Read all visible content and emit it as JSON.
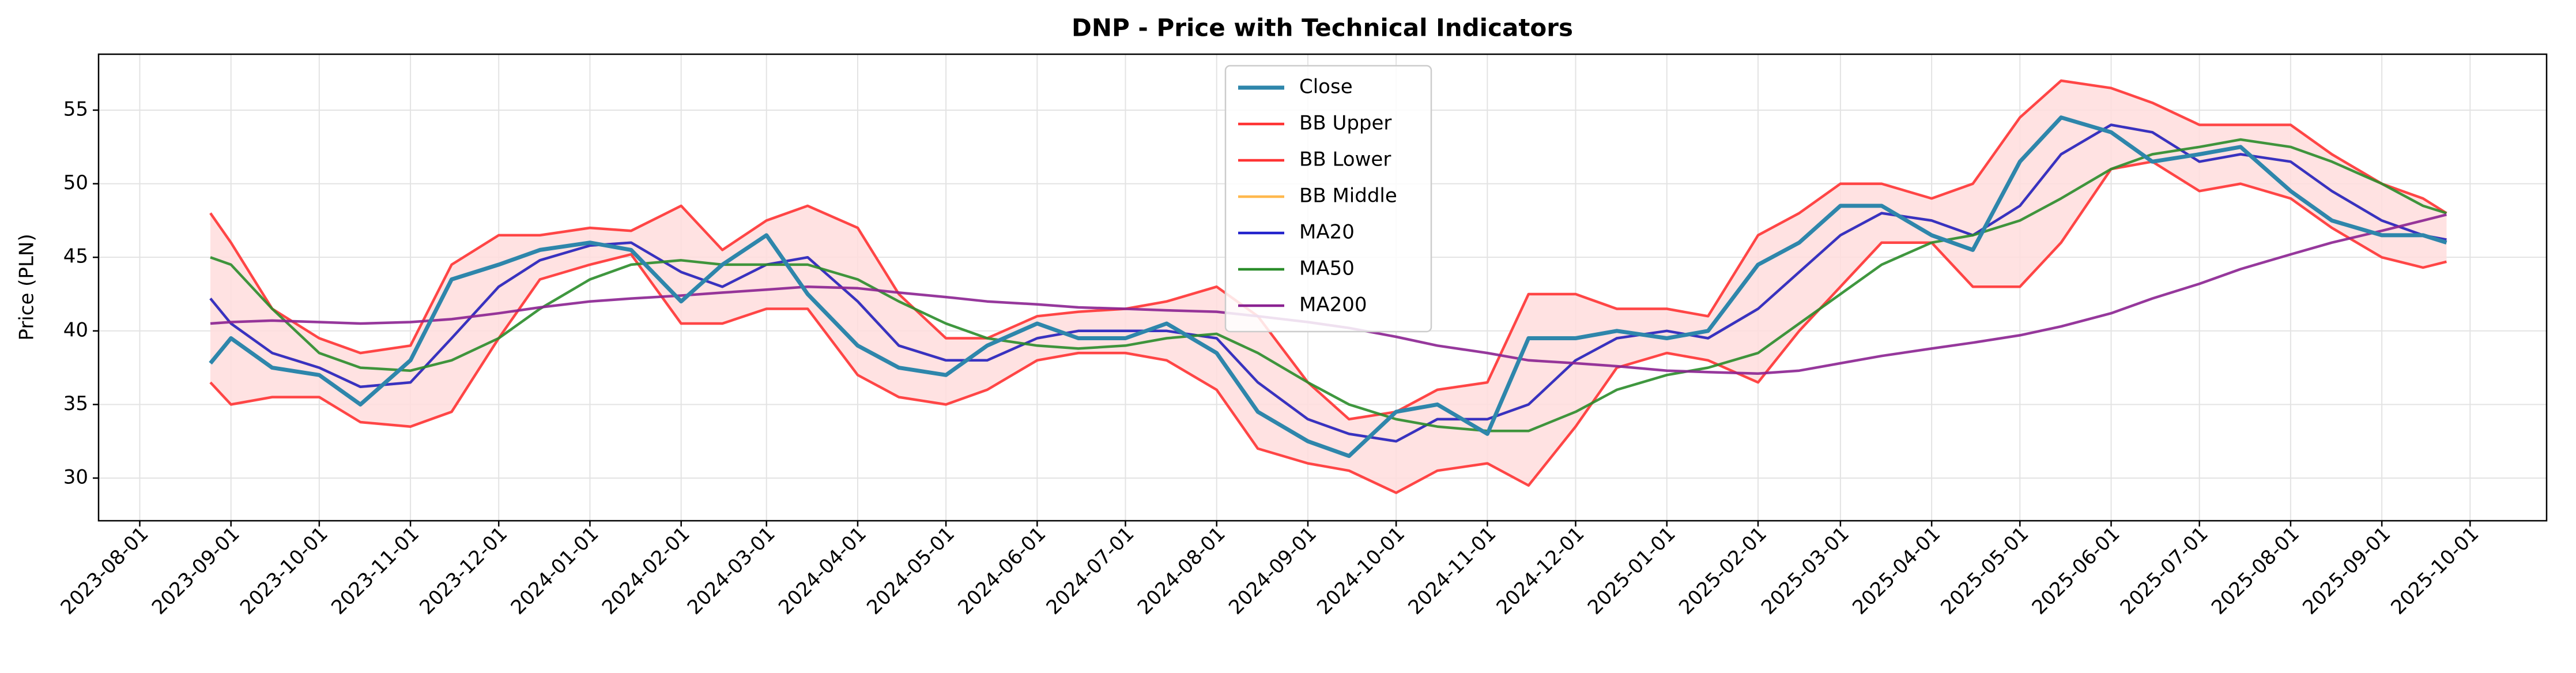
{
  "chart_data": {
    "type": "line",
    "title": "DNP - Price with Technical Indicators",
    "y_label": "Price (PLN)",
    "x": [
      "2023-08-25",
      "2023-09-01",
      "2023-09-15",
      "2023-10-01",
      "2023-10-15",
      "2023-11-01",
      "2023-11-15",
      "2023-12-01",
      "2023-12-15",
      "2024-01-01",
      "2024-01-15",
      "2024-02-01",
      "2024-02-15",
      "2024-03-01",
      "2024-03-15",
      "2024-04-01",
      "2024-04-15",
      "2024-05-01",
      "2024-05-15",
      "2024-06-01",
      "2024-06-15",
      "2024-07-01",
      "2024-07-15",
      "2024-08-01",
      "2024-08-15",
      "2024-09-01",
      "2024-09-15",
      "2024-10-01",
      "2024-10-15",
      "2024-11-01",
      "2024-11-15",
      "2024-12-01",
      "2024-12-15",
      "2025-01-01",
      "2025-01-15",
      "2025-02-01",
      "2025-02-15",
      "2025-03-01",
      "2025-03-15",
      "2025-04-01",
      "2025-04-15",
      "2025-05-01",
      "2025-05-15",
      "2025-06-01",
      "2025-06-15",
      "2025-07-01",
      "2025-07-15",
      "2025-08-01",
      "2025-08-15",
      "2025-09-01",
      "2025-09-15",
      "2025-09-23"
    ],
    "series": [
      {
        "name": "Close",
        "color": "#2e86ab",
        "values": [
          37.8,
          39.5,
          37.5,
          37.0,
          35.0,
          38.0,
          43.5,
          44.5,
          45.5,
          46.0,
          45.5,
          42.0,
          44.5,
          46.5,
          42.5,
          39.0,
          37.5,
          37.0,
          39.0,
          40.5,
          39.5,
          39.5,
          40.5,
          38.5,
          34.5,
          32.5,
          31.5,
          34.5,
          35.0,
          33.0,
          39.5,
          39.5,
          40.0,
          39.5,
          40.0,
          44.5,
          46.0,
          48.5,
          48.5,
          46.5,
          45.5,
          51.5,
          54.5,
          53.5,
          51.5,
          52.0,
          52.5,
          49.5,
          47.5,
          46.5,
          46.5,
          46.0
        ]
      },
      {
        "name": "BB Upper",
        "color": "#ff3333",
        "values": [
          48.0,
          46.0,
          41.5,
          39.5,
          38.5,
          39.0,
          44.5,
          46.5,
          46.5,
          47.0,
          46.8,
          48.5,
          45.5,
          47.5,
          48.5,
          47.0,
          42.5,
          39.5,
          39.5,
          41.0,
          41.3,
          41.5,
          42.0,
          43.0,
          41.0,
          36.5,
          34.0,
          34.5,
          36.0,
          36.5,
          42.5,
          42.5,
          41.5,
          41.5,
          41.0,
          46.5,
          48.0,
          50.0,
          50.0,
          49.0,
          50.0,
          54.5,
          57.0,
          56.5,
          55.5,
          54.0,
          54.0,
          54.0,
          52.0,
          50.0,
          49.0,
          48.0
        ]
      },
      {
        "name": "BB Lower",
        "color": "#ff3333",
        "values": [
          36.5,
          35.0,
          35.5,
          35.5,
          33.8,
          33.5,
          34.5,
          39.5,
          43.5,
          44.5,
          45.2,
          40.5,
          40.5,
          41.5,
          41.5,
          37.0,
          35.5,
          35.0,
          36.0,
          38.0,
          38.5,
          38.5,
          38.0,
          36.0,
          32.0,
          31.0,
          30.5,
          29.0,
          30.5,
          31.0,
          29.5,
          33.5,
          37.5,
          38.5,
          38.0,
          36.5,
          40.0,
          43.0,
          46.0,
          46.0,
          43.0,
          43.0,
          46.0,
          51.0,
          51.5,
          49.5,
          50.0,
          49.0,
          47.0,
          45.0,
          44.3,
          44.7
        ]
      },
      {
        "name": "BB Middle",
        "color": "#ffb84d",
        "values": [
          42.2,
          40.5,
          38.5,
          37.5,
          36.2,
          36.5,
          39.5,
          43.0,
          44.8,
          45.8,
          46.0,
          44.0,
          43.0,
          44.5,
          45.0,
          42.0,
          39.0,
          38.0,
          38.0,
          39.5,
          40.0,
          40.0,
          40.0,
          39.5,
          36.5,
          34.0,
          33.0,
          32.5,
          34.0,
          34.0,
          35.0,
          38.0,
          39.5,
          40.0,
          39.5,
          41.5,
          44.0,
          46.5,
          48.0,
          47.5,
          46.5,
          48.5,
          52.0,
          54.0,
          53.5,
          51.5,
          52.0,
          51.5,
          49.5,
          47.5,
          46.5,
          46.2
        ]
      },
      {
        "name": "MA20",
        "color": "#2222cc",
        "values": [
          42.2,
          40.5,
          38.5,
          37.5,
          36.2,
          36.5,
          39.5,
          43.0,
          44.8,
          45.8,
          46.0,
          44.0,
          43.0,
          44.5,
          45.0,
          42.0,
          39.0,
          38.0,
          38.0,
          39.5,
          40.0,
          40.0,
          40.0,
          39.5,
          36.5,
          34.0,
          33.0,
          32.5,
          34.0,
          34.0,
          35.0,
          38.0,
          39.5,
          40.0,
          39.5,
          41.5,
          44.0,
          46.5,
          48.0,
          47.5,
          46.5,
          48.5,
          52.0,
          54.0,
          53.5,
          51.5,
          52.0,
          51.5,
          49.5,
          47.5,
          46.5,
          46.2
        ]
      },
      {
        "name": "MA50",
        "color": "#2a8c2a",
        "values": [
          45.0,
          44.5,
          41.5,
          38.5,
          37.5,
          37.3,
          38.0,
          39.5,
          41.5,
          43.5,
          44.5,
          44.8,
          44.5,
          44.5,
          44.5,
          43.5,
          42.0,
          40.5,
          39.5,
          39.0,
          38.8,
          39.0,
          39.5,
          39.8,
          38.5,
          36.5,
          35.0,
          34.0,
          33.5,
          33.2,
          33.2,
          34.5,
          36.0,
          37.0,
          37.5,
          38.5,
          40.5,
          42.5,
          44.5,
          46.0,
          46.5,
          47.5,
          49.0,
          51.0,
          52.0,
          52.5,
          53.0,
          52.5,
          51.5,
          50.0,
          48.5,
          48.0
        ]
      },
      {
        "name": "MA200",
        "color": "#8b2291",
        "values": [
          40.5,
          40.6,
          40.7,
          40.6,
          40.5,
          40.6,
          40.8,
          41.2,
          41.6,
          42.0,
          42.2,
          42.4,
          42.6,
          42.8,
          43.0,
          42.9,
          42.6,
          42.3,
          42.0,
          41.8,
          41.6,
          41.5,
          41.4,
          41.3,
          41.0,
          40.6,
          40.2,
          39.6,
          39.0,
          38.5,
          38.0,
          37.8,
          37.6,
          37.3,
          37.2,
          37.1,
          37.3,
          37.8,
          38.3,
          38.8,
          39.2,
          39.7,
          40.3,
          41.2,
          42.2,
          43.2,
          44.2,
          45.2,
          46.0,
          46.8,
          47.5,
          47.9
        ]
      }
    ],
    "band_fill": "#ffdddd",
    "xlim": [
      "2023-07-18",
      "2025-10-27"
    ],
    "xticks": [
      "2023-08-01",
      "2023-09-01",
      "2023-10-01",
      "2023-11-01",
      "2023-12-01",
      "2024-01-01",
      "2024-02-01",
      "2024-03-01",
      "2024-04-01",
      "2024-05-01",
      "2024-06-01",
      "2024-07-01",
      "2024-08-01",
      "2024-09-01",
      "2024-10-01",
      "2024-11-01",
      "2024-12-01",
      "2025-01-01",
      "2025-02-01",
      "2025-03-01",
      "2025-04-01",
      "2025-05-01",
      "2025-06-01",
      "2025-07-01",
      "2025-08-01",
      "2025-09-01",
      "2025-10-01"
    ],
    "ylim": [
      27.1,
      58.8
    ],
    "yticks": [
      30,
      35,
      40,
      45,
      50,
      55
    ],
    "grid": true,
    "legend": "upper center"
  }
}
